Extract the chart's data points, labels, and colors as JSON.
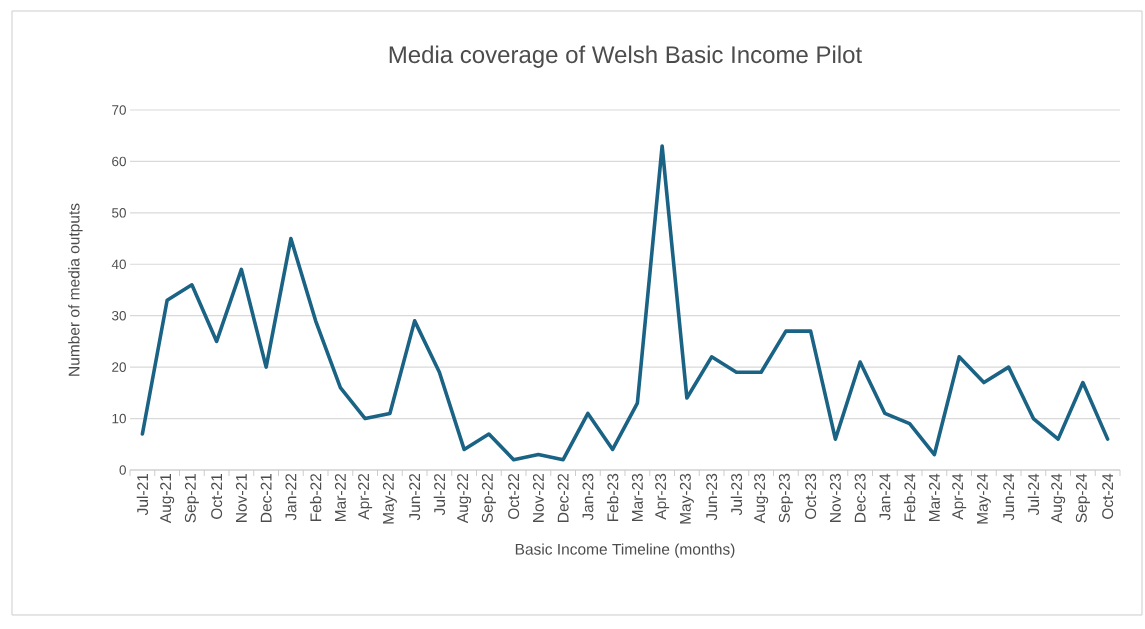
{
  "chart_data": {
    "type": "line",
    "title": "Media coverage of Welsh Basic Income Pilot",
    "xlabel": "Basic Income Timeline (months)",
    "ylabel": "Number of media outputs",
    "categories": [
      "Jul-21",
      "Aug-21",
      "Sep-21",
      "Oct-21",
      "Nov-21",
      "Dec-21",
      "Jan-22",
      "Feb-22",
      "Mar-22",
      "Apr-22",
      "May-22",
      "Jun-22",
      "Jul-22",
      "Aug-22",
      "Sep-22",
      "Oct-22",
      "Nov-22",
      "Dec-22",
      "Jan-23",
      "Feb-23",
      "Mar-23",
      "Apr-23",
      "May-23",
      "Jun-23",
      "Jul-23",
      "Aug-23",
      "Sep-23",
      "Oct-23",
      "Nov-23",
      "Dec-23",
      "Jan-24",
      "Feb-24",
      "Mar-24",
      "Apr-24",
      "May-24",
      "Jun-24",
      "Jul-24",
      "Aug-24",
      "Sep-24",
      "Oct-24"
    ],
    "series": [
      {
        "color": "#1a6385",
        "values": [
          7,
          33,
          36,
          25,
          39,
          20,
          45,
          29,
          16,
          10,
          11,
          29,
          19,
          4,
          7,
          2,
          3,
          2,
          11,
          4,
          13,
          63,
          14,
          22,
          19,
          19,
          27,
          27,
          6,
          21,
          11,
          9,
          3,
          22,
          17,
          20,
          10,
          6,
          17,
          6
        ]
      }
    ],
    "ylim": [
      0,
      70
    ],
    "yticks": [
      0,
      10,
      20,
      30,
      40,
      50,
      60,
      70
    ],
    "grid": "y",
    "marker": "none",
    "line_style": "solid"
  }
}
